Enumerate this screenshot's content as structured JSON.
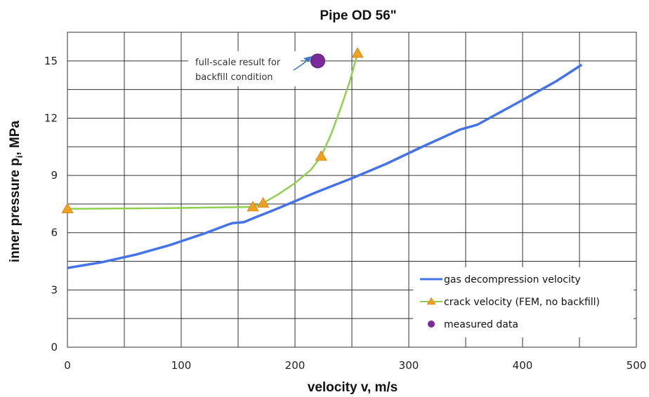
{
  "chart_data": {
    "type": "line",
    "title": "Pipe OD 56\"",
    "xlabel": "velocity v, m/s",
    "ylabel_main": "inner pressure p",
    "ylabel_sub": "i",
    "ylabel_unit": ", MPa",
    "xlim": [
      0,
      500
    ],
    "ylim": [
      0,
      16.5
    ],
    "xticks": [
      0,
      100,
      200,
      300,
      400,
      500
    ],
    "yticks": [
      0,
      3,
      6,
      9,
      12,
      15
    ],
    "xtick_labels": [
      "0",
      "100",
      "200",
      "300",
      "400",
      "500"
    ],
    "ytick_labels": [
      "0",
      "3",
      "6",
      "9",
      "12",
      "15"
    ],
    "grid": true,
    "legend_position": "bottom-right",
    "series": [
      {
        "name": "gas decompression velocity",
        "color": "#4472e8",
        "marker": "none",
        "x": [
          0,
          30,
          60,
          90,
          120,
          140,
          145,
          155,
          165,
          180,
          200,
          220,
          250,
          280,
          310,
          345,
          360,
          400,
          430,
          452
        ],
        "y": [
          4.15,
          4.45,
          4.85,
          5.35,
          5.95,
          6.4,
          6.5,
          6.55,
          6.8,
          7.15,
          7.65,
          8.15,
          8.85,
          9.6,
          10.45,
          11.4,
          11.65,
          12.95,
          13.95,
          14.8
        ]
      },
      {
        "name": "crack velocity (FEM, no backfill)",
        "color": "#8fd14f",
        "marker": "triangle",
        "marker_color": "#f0a020",
        "x": [
          0,
          80,
          163,
          172,
          185,
          200,
          214,
          223,
          232,
          240,
          248,
          255
        ],
        "y": [
          7.25,
          7.28,
          7.35,
          7.55,
          8.0,
          8.6,
          9.3,
          10.0,
          11.2,
          12.5,
          13.9,
          15.4
        ],
        "marker_x": [
          0,
          163,
          172,
          223,
          255
        ],
        "marker_y": [
          7.25,
          7.35,
          7.55,
          10.0,
          15.4
        ]
      },
      {
        "name": "measured data",
        "color": "#7b2a9a",
        "marker": "circle",
        "x": [
          220
        ],
        "y": [
          15.0
        ]
      }
    ],
    "annotations": [
      {
        "lines": [
          "full-scale result for",
          "backfill condition"
        ],
        "points_to": [
          220,
          15.0
        ]
      }
    ]
  }
}
